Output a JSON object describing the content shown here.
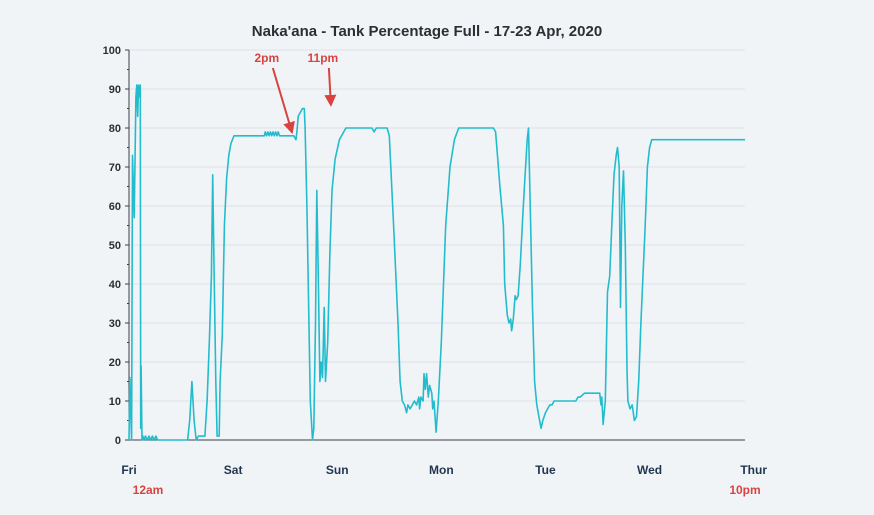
{
  "chart_data": {
    "type": "line",
    "title": "Naka'ana - Tank Percentage Full - 17-23 Apr, 2020",
    "xlabel": "",
    "ylabel": "",
    "ylim": [
      0,
      100
    ],
    "xlim": [
      0,
      142
    ],
    "x_unit": "hours since Fri 12am",
    "yticks": [
      0,
      10,
      20,
      30,
      40,
      50,
      60,
      70,
      80,
      90,
      100
    ],
    "xticks": [
      {
        "label": "Fri",
        "x": 0
      },
      {
        "label": "Sat",
        "x": 24
      },
      {
        "label": "Sun",
        "x": 48
      },
      {
        "label": "Mon",
        "x": 72
      },
      {
        "label": "Tue",
        "x": 96
      },
      {
        "label": "Wed",
        "x": 120
      },
      {
        "label": "Thur",
        "x": 144
      }
    ],
    "annotations": [
      {
        "text": "2pm",
        "kind": "arrow",
        "x": 38,
        "y": 78
      },
      {
        "text": "11pm",
        "kind": "arrow",
        "x": 47,
        "y": 85
      },
      {
        "text": "12am",
        "kind": "label",
        "x": 0
      },
      {
        "text": "10pm",
        "kind": "label",
        "x": 142
      }
    ],
    "grid": true,
    "colors": {
      "line": "#22bccd",
      "annotation": "#d9433f",
      "grid": "#dde2e7",
      "axis": "#3a3f44"
    },
    "series": [
      {
        "name": "",
        "points": [
          [
            0,
            0
          ],
          [
            0.2,
            16
          ],
          [
            0.4,
            8
          ],
          [
            0.6,
            0
          ],
          [
            0.8,
            73
          ],
          [
            1.2,
            57
          ],
          [
            1.4,
            73
          ],
          [
            1.6,
            88
          ],
          [
            1.8,
            91
          ],
          [
            2.0,
            83
          ],
          [
            2.2,
            91
          ],
          [
            2.4,
            88
          ],
          [
            2.6,
            91
          ],
          [
            2.7,
            3
          ],
          [
            2.8,
            19
          ],
          [
            3.0,
            0
          ],
          [
            3.2,
            1
          ],
          [
            3.4,
            0
          ],
          [
            3.8,
            1
          ],
          [
            4.2,
            0
          ],
          [
            4.6,
            1
          ],
          [
            5.0,
            0
          ],
          [
            5.4,
            1
          ],
          [
            5.8,
            0
          ],
          [
            6.2,
            1
          ],
          [
            6.6,
            0
          ],
          [
            10,
            0
          ],
          [
            13.5,
            0
          ],
          [
            14.0,
            5
          ],
          [
            14.5,
            15
          ],
          [
            15.0,
            5
          ],
          [
            15.5,
            0
          ],
          [
            16.0,
            1
          ],
          [
            16.5,
            1
          ],
          [
            17.5,
            1
          ],
          [
            18.0,
            10
          ],
          [
            18.5,
            25
          ],
          [
            19.0,
            42
          ],
          [
            19.3,
            68
          ],
          [
            19.6,
            45
          ],
          [
            20.0,
            15
          ],
          [
            20.3,
            1
          ],
          [
            20.8,
            1
          ],
          [
            21.0,
            15
          ],
          [
            21.5,
            27
          ],
          [
            22.0,
            55
          ],
          [
            22.5,
            67
          ],
          [
            23.0,
            73
          ],
          [
            23.5,
            76
          ],
          [
            24.2,
            78
          ],
          [
            28,
            78
          ],
          [
            31.2,
            78
          ],
          [
            31.4,
            79
          ],
          [
            31.7,
            78
          ],
          [
            32.0,
            79
          ],
          [
            32.3,
            78
          ],
          [
            32.6,
            79
          ],
          [
            32.9,
            78
          ],
          [
            33.2,
            79
          ],
          [
            33.5,
            78
          ],
          [
            33.8,
            79
          ],
          [
            34.1,
            78
          ],
          [
            34.4,
            79
          ],
          [
            34.7,
            78
          ],
          [
            35.0,
            78
          ],
          [
            38.0,
            78
          ],
          [
            38.5,
            77
          ],
          [
            38.7,
            79
          ],
          [
            39.0,
            83
          ],
          [
            40.0,
            85
          ],
          [
            40.4,
            85
          ],
          [
            40.6,
            80
          ],
          [
            41.0,
            60
          ],
          [
            41.4,
            35
          ],
          [
            41.8,
            10
          ],
          [
            42.3,
            0
          ],
          [
            42.6,
            3
          ],
          [
            43.0,
            30
          ],
          [
            43.3,
            64
          ],
          [
            43.6,
            45
          ],
          [
            44.0,
            15
          ],
          [
            44.3,
            20
          ],
          [
            44.6,
            16
          ],
          [
            45.0,
            34
          ],
          [
            45.3,
            15
          ],
          [
            45.8,
            25
          ],
          [
            46.3,
            48
          ],
          [
            46.8,
            64
          ],
          [
            47.5,
            72
          ],
          [
            48.5,
            77
          ],
          [
            50.0,
            80
          ],
          [
            56.0,
            80
          ],
          [
            56.5,
            79
          ],
          [
            57.0,
            80
          ],
          [
            59.5,
            80
          ],
          [
            60.0,
            78
          ],
          [
            61.0,
            55
          ],
          [
            62.0,
            30
          ],
          [
            62.5,
            15
          ],
          [
            63.0,
            10
          ],
          [
            63.5,
            9
          ],
          [
            64.0,
            7
          ],
          [
            64.3,
            9
          ],
          [
            64.8,
            8
          ],
          [
            65.3,
            9
          ],
          [
            65.8,
            10
          ],
          [
            66.3,
            9
          ],
          [
            66.8,
            11
          ],
          [
            67.0,
            8
          ],
          [
            67.3,
            11
          ],
          [
            67.8,
            10
          ],
          [
            68.0,
            17
          ],
          [
            68.3,
            13
          ],
          [
            68.6,
            17
          ],
          [
            69.0,
            11
          ],
          [
            69.3,
            14
          ],
          [
            69.8,
            12
          ],
          [
            70.0,
            8
          ],
          [
            70.3,
            10
          ],
          [
            70.8,
            2
          ],
          [
            71.3,
            10
          ],
          [
            72.0,
            25
          ],
          [
            73.0,
            55
          ],
          [
            74.0,
            70
          ],
          [
            75.0,
            77
          ],
          [
            76.0,
            80
          ],
          [
            84.0,
            80
          ],
          [
            84.5,
            79
          ],
          [
            85.5,
            65
          ],
          [
            86.3,
            55
          ],
          [
            86.6,
            40
          ],
          [
            87.2,
            32
          ],
          [
            87.6,
            30
          ],
          [
            88.0,
            31
          ],
          [
            88.2,
            28
          ],
          [
            88.6,
            31
          ],
          [
            89.0,
            37
          ],
          [
            89.3,
            36
          ],
          [
            89.7,
            37
          ],
          [
            90.2,
            45
          ],
          [
            90.8,
            58
          ],
          [
            91.3,
            68
          ],
          [
            91.8,
            77
          ],
          [
            92.1,
            80
          ],
          [
            92.4,
            65
          ],
          [
            93.0,
            35
          ],
          [
            93.5,
            15
          ],
          [
            94.0,
            9
          ],
          [
            94.5,
            6
          ],
          [
            95.0,
            3
          ],
          [
            95.4,
            5
          ],
          [
            96.0,
            7
          ],
          [
            97.0,
            9
          ],
          [
            97.5,
            9
          ],
          [
            98.0,
            10
          ],
          [
            103.0,
            10
          ],
          [
            103.5,
            11
          ],
          [
            104.0,
            11
          ],
          [
            105.0,
            12
          ],
          [
            108.5,
            12
          ],
          [
            108.8,
            9
          ],
          [
            109.0,
            11
          ],
          [
            109.3,
            4
          ],
          [
            109.8,
            10
          ],
          [
            110.3,
            38
          ],
          [
            110.8,
            42
          ],
          [
            111.3,
            55
          ],
          [
            111.8,
            68
          ],
          [
            112.3,
            73
          ],
          [
            112.6,
            75
          ],
          [
            113.0,
            70
          ],
          [
            113.3,
            34
          ],
          [
            113.6,
            60
          ],
          [
            114.0,
            69
          ],
          [
            114.4,
            50
          ],
          [
            114.8,
            18
          ],
          [
            115.0,
            10
          ],
          [
            115.5,
            8
          ],
          [
            116.0,
            9
          ],
          [
            116.5,
            5
          ],
          [
            117.0,
            6
          ],
          [
            117.5,
            15
          ],
          [
            118.0,
            30
          ],
          [
            119.0,
            55
          ],
          [
            119.5,
            70
          ],
          [
            120.0,
            75
          ],
          [
            120.5,
            77
          ],
          [
            126.0,
            77
          ],
          [
            142.0,
            77
          ]
        ]
      }
    ]
  }
}
